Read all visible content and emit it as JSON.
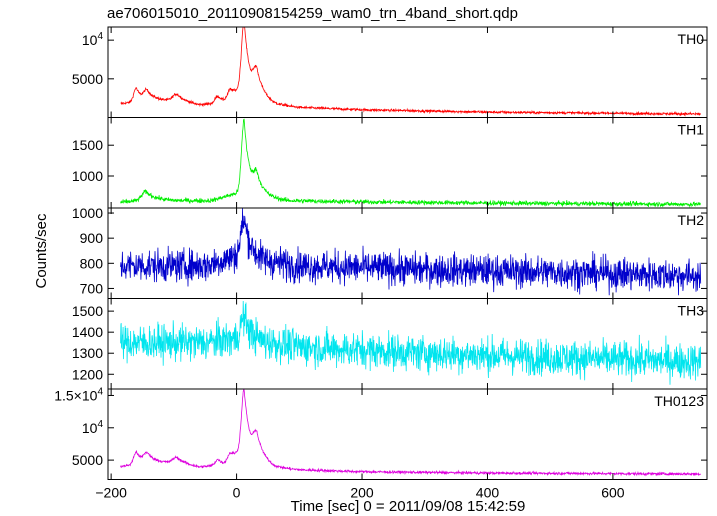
{
  "chart_data": {
    "type": "line",
    "title": "ae706015010_20110908154259_wam0_trn_4band_short.qdp",
    "xlabel": "Time [sec] 0 = 2011/09/08 15:42:59",
    "ylabel": "Counts/sec",
    "xlim": [
      -205,
      750
    ],
    "x_ticks": [
      -200,
      0,
      200,
      400,
      600
    ],
    "x_tick_labels": [
      "−200",
      "0",
      "200",
      "400",
      "600"
    ],
    "x_range": [
      -185,
      740
    ],
    "panels": [
      {
        "name": "TH0",
        "color": "#ff0000",
        "ylim": [
          0,
          11700
        ],
        "y_ticks": [
          {
            "value": 5000,
            "label": "5000"
          },
          {
            "value": 10000,
            "label": "10",
            "sup": "4"
          }
        ],
        "baseline": [
          [
            -185,
            1800
          ],
          [
            -140,
            2200
          ],
          [
            -100,
            2200
          ],
          [
            -60,
            1600
          ],
          [
            -20,
            2000
          ],
          [
            5,
            3500
          ],
          [
            30,
            2700
          ],
          [
            60,
            1700
          ],
          [
            100,
            1300
          ],
          [
            200,
            1000
          ],
          [
            400,
            700
          ],
          [
            600,
            550
          ],
          [
            740,
            450
          ]
        ],
        "peaks": [
          {
            "t": 12,
            "a": 9200,
            "w": 4
          },
          {
            "t": 32,
            "a": 3000,
            "w": 5
          },
          {
            "t": -160,
            "a": 1800,
            "w": 4
          },
          {
            "t": -143,
            "a": 1200,
            "w": 5
          },
          {
            "t": -95,
            "a": 900,
            "w": 6
          },
          {
            "t": -30,
            "a": 900,
            "w": 4
          },
          {
            "t": -10,
            "a": 1000,
            "w": 4
          }
        ],
        "noise": 80
      },
      {
        "name": "TH1",
        "color": "#00ee00",
        "ylim": [
          480,
          1950
        ],
        "y_ticks": [
          {
            "value": 1000,
            "label": "1000"
          },
          {
            "value": 1500,
            "label": "1500"
          }
        ],
        "baseline": [
          [
            -185,
            570
          ],
          [
            -140,
            620
          ],
          [
            -100,
            600
          ],
          [
            -40,
            600
          ],
          [
            0,
            720
          ],
          [
            40,
            660
          ],
          [
            80,
            600
          ],
          [
            200,
            580
          ],
          [
            400,
            560
          ],
          [
            740,
            540
          ]
        ],
        "peaks": [
          {
            "t": 12,
            "a": 1220,
            "w": 4
          },
          {
            "t": 32,
            "a": 300,
            "w": 5
          },
          {
            "t": -145,
            "a": 130,
            "w": 6
          }
        ],
        "noise": 18
      },
      {
        "name": "TH2",
        "color": "#0000cc",
        "ylim": [
          660,
          1020
        ],
        "y_ticks": [
          {
            "value": 700,
            "label": "700"
          },
          {
            "value": 800,
            "label": "800"
          },
          {
            "value": 900,
            "label": "900"
          },
          {
            "value": 1000,
            "label": "1000"
          }
        ],
        "baseline": [
          [
            -185,
            790
          ],
          [
            -50,
            790
          ],
          [
            0,
            830
          ],
          [
            40,
            810
          ],
          [
            100,
            790
          ],
          [
            300,
            775
          ],
          [
            500,
            765
          ],
          [
            740,
            750
          ]
        ],
        "peaks": [
          {
            "t": 12,
            "a": 150,
            "w": 5
          }
        ],
        "noise": 32
      },
      {
        "name": "TH3",
        "color": "#00e5ee",
        "ylim": [
          1130,
          1560
        ],
        "y_ticks": [
          {
            "value": 1200,
            "label": "1200"
          },
          {
            "value": 1300,
            "label": "1300"
          },
          {
            "value": 1400,
            "label": "1400"
          },
          {
            "value": 1500,
            "label": "1500"
          }
        ],
        "baseline": [
          [
            -185,
            1350
          ],
          [
            -50,
            1350
          ],
          [
            0,
            1370
          ],
          [
            100,
            1330
          ],
          [
            300,
            1300
          ],
          [
            500,
            1280
          ],
          [
            740,
            1260
          ]
        ],
        "peaks": [
          {
            "t": 12,
            "a": 110,
            "w": 5
          }
        ],
        "noise": 42
      },
      {
        "name": "TH0123",
        "color": "#dd00dd",
        "ylim": [
          2000,
          16000
        ],
        "y_ticks": [
          {
            "value": 5000,
            "label": "5000"
          },
          {
            "value": 10000,
            "label": "10",
            "sup": "4"
          },
          {
            "value": 15000,
            "label": "1.5×10",
            "sup": "4"
          }
        ],
        "baseline": [
          [
            -185,
            4000
          ],
          [
            -140,
            4700
          ],
          [
            -100,
            4600
          ],
          [
            -60,
            3900
          ],
          [
            -20,
            4300
          ],
          [
            5,
            6200
          ],
          [
            30,
            5200
          ],
          [
            60,
            3900
          ],
          [
            100,
            3500
          ],
          [
            200,
            3200
          ],
          [
            400,
            3000
          ],
          [
            740,
            2850
          ]
        ],
        "peaks": [
          {
            "t": 12,
            "a": 10000,
            "w": 4
          },
          {
            "t": 32,
            "a": 3400,
            "w": 5
          },
          {
            "t": -160,
            "a": 1900,
            "w": 4
          },
          {
            "t": -143,
            "a": 1300,
            "w": 5
          },
          {
            "t": -95,
            "a": 900,
            "w": 6
          },
          {
            "t": -30,
            "a": 900,
            "w": 4
          },
          {
            "t": -10,
            "a": 1000,
            "w": 4
          }
        ],
        "noise": 100
      }
    ]
  }
}
